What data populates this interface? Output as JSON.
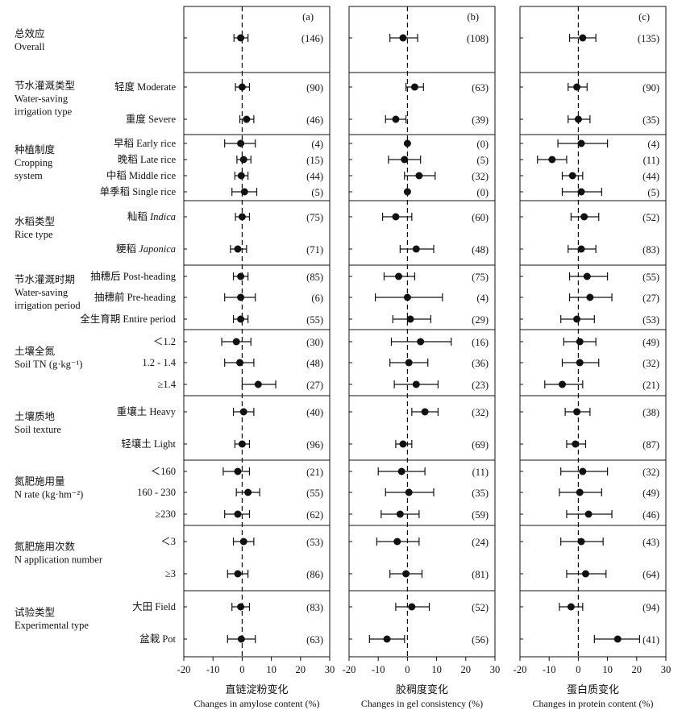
{
  "chart_data": {
    "type": "scatter",
    "panels": [
      {
        "label": "(a)",
        "title": "直链淀粉变化",
        "xlabel": "Changes in amylose content (%)",
        "xlim": [
          -20,
          30
        ],
        "xticks": [
          -20,
          -10,
          0,
          10,
          20,
          30
        ],
        "points": [
          {
            "mean": -0.5,
            "lo": -2.8,
            "hi": 2.0,
            "n": "(146)"
          },
          {
            "mean": 0.0,
            "lo": -2.3,
            "hi": 2.5,
            "n": "(90)"
          },
          {
            "mean": 1.5,
            "lo": -0.8,
            "hi": 4.0,
            "n": "(46)"
          },
          {
            "mean": -0.5,
            "lo": -6.0,
            "hi": 4.5,
            "n": "(4)"
          },
          {
            "mean": 0.5,
            "lo": -1.8,
            "hi": 3.0,
            "n": "(15)"
          },
          {
            "mean": -0.3,
            "lo": -2.5,
            "hi": 2.0,
            "n": "(44)"
          },
          {
            "mean": 0.8,
            "lo": -3.5,
            "hi": 5.0,
            "n": "(5)"
          },
          {
            "mean": 0.0,
            "lo": -2.3,
            "hi": 2.5,
            "n": "(75)"
          },
          {
            "mean": -1.5,
            "lo": -4.0,
            "hi": 1.5,
            "n": "(71)"
          },
          {
            "mean": -0.5,
            "lo": -3.0,
            "hi": 2.0,
            "n": "(85)"
          },
          {
            "mean": -0.5,
            "lo": -6.0,
            "hi": 4.5,
            "n": "(6)"
          },
          {
            "mean": -0.5,
            "lo": -3.0,
            "hi": 2.0,
            "n": "(55)"
          },
          {
            "mean": -2.0,
            "lo": -7.0,
            "hi": 3.0,
            "n": "(30)"
          },
          {
            "mean": -0.8,
            "lo": -6.0,
            "hi": 4.0,
            "n": "(48)"
          },
          {
            "mean": 5.5,
            "lo": 0.0,
            "hi": 11.5,
            "n": "(27)"
          },
          {
            "mean": 0.5,
            "lo": -3.0,
            "hi": 4.0,
            "n": "(40)"
          },
          {
            "mean": 0.0,
            "lo": -2.5,
            "hi": 2.5,
            "n": "(96)"
          },
          {
            "mean": -1.5,
            "lo": -6.5,
            "hi": 2.5,
            "n": "(21)"
          },
          {
            "mean": 2.0,
            "lo": -2.0,
            "hi": 6.0,
            "n": "(55)"
          },
          {
            "mean": -1.5,
            "lo": -6.0,
            "hi": 2.5,
            "n": "(62)"
          },
          {
            "mean": 0.5,
            "lo": -3.0,
            "hi": 4.0,
            "n": "(53)"
          },
          {
            "mean": -1.5,
            "lo": -5.0,
            "hi": 2.0,
            "n": "(86)"
          },
          {
            "mean": -0.5,
            "lo": -3.5,
            "hi": 2.5,
            "n": "(83)"
          },
          {
            "mean": -0.3,
            "lo": -5.0,
            "hi": 4.5,
            "n": "(63)"
          }
        ]
      },
      {
        "label": "(b)",
        "title": "胶稠度变化",
        "xlabel": "Changes in gel consistency (%)",
        "xlim": [
          -20,
          30
        ],
        "xticks": [
          -20,
          -10,
          0,
          10,
          20,
          30
        ],
        "points": [
          {
            "mean": -1.5,
            "lo": -6.0,
            "hi": 3.5,
            "n": "(108)"
          },
          {
            "mean": 2.5,
            "lo": -0.5,
            "hi": 5.5,
            "n": "(63)"
          },
          {
            "mean": -4.0,
            "lo": -7.5,
            "hi": -0.5,
            "n": "(39)"
          },
          {
            "mean": 0.0,
            "lo": 0.0,
            "hi": 0.0,
            "n": "(0)"
          },
          {
            "mean": -1.0,
            "lo": -6.5,
            "hi": 4.5,
            "n": "(5)"
          },
          {
            "mean": 4.0,
            "lo": -1.0,
            "hi": 9.5,
            "n": "(32)"
          },
          {
            "mean": 0.0,
            "lo": 0.0,
            "hi": 0.0,
            "n": "(0)"
          },
          {
            "mean": -4.0,
            "lo": -8.5,
            "hi": 1.5,
            "n": "(60)"
          },
          {
            "mean": 3.0,
            "lo": -2.5,
            "hi": 9.0,
            "n": "(48)"
          },
          {
            "mean": -3.0,
            "lo": -8.0,
            "hi": 2.5,
            "n": "(75)"
          },
          {
            "mean": 0.0,
            "lo": -11.0,
            "hi": 12.0,
            "n": "(4)"
          },
          {
            "mean": 1.0,
            "lo": -5.0,
            "hi": 8.0,
            "n": "(29)"
          },
          {
            "mean": 4.5,
            "lo": -5.5,
            "hi": 15.0,
            "n": "(16)"
          },
          {
            "mean": 0.5,
            "lo": -6.0,
            "hi": 7.0,
            "n": "(36)"
          },
          {
            "mean": 3.0,
            "lo": -4.5,
            "hi": 10.5,
            "n": "(23)"
          },
          {
            "mean": 6.0,
            "lo": 1.5,
            "hi": 10.5,
            "n": "(32)"
          },
          {
            "mean": -1.5,
            "lo": -4.0,
            "hi": 1.5,
            "n": "(69)"
          },
          {
            "mean": -2.0,
            "lo": -10.0,
            "hi": 6.0,
            "n": "(11)"
          },
          {
            "mean": 0.5,
            "lo": -7.5,
            "hi": 9.0,
            "n": "(35)"
          },
          {
            "mean": -2.5,
            "lo": -9.0,
            "hi": 4.0,
            "n": "(59)"
          },
          {
            "mean": -3.5,
            "lo": -10.5,
            "hi": 4.0,
            "n": "(24)"
          },
          {
            "mean": -0.5,
            "lo": -6.0,
            "hi": 5.0,
            "n": "(81)"
          },
          {
            "mean": 1.5,
            "lo": -4.0,
            "hi": 7.5,
            "n": "(52)"
          },
          {
            "mean": -7.0,
            "lo": -13.0,
            "hi": -1.0,
            "n": "(56)"
          }
        ]
      },
      {
        "label": "(c)",
        "title": "蛋白质变化",
        "xlabel": "Changes in protein content (%)",
        "xlim": [
          -20,
          30
        ],
        "xticks": [
          -20,
          -10,
          0,
          10,
          20,
          30
        ],
        "points": [
          {
            "mean": 1.5,
            "lo": -3.0,
            "hi": 6.0,
            "n": "(135)"
          },
          {
            "mean": -0.5,
            "lo": -3.5,
            "hi": 3.0,
            "n": "(90)"
          },
          {
            "mean": 0.0,
            "lo": -3.5,
            "hi": 4.0,
            "n": "(35)"
          },
          {
            "mean": 1.0,
            "lo": -7.0,
            "hi": 10.0,
            "n": "(4)"
          },
          {
            "mean": -9.0,
            "lo": -14.0,
            "hi": -4.0,
            "n": "(11)"
          },
          {
            "mean": -2.0,
            "lo": -5.5,
            "hi": 1.5,
            "n": "(44)"
          },
          {
            "mean": 1.0,
            "lo": -5.5,
            "hi": 8.0,
            "n": "(5)"
          },
          {
            "mean": 2.0,
            "lo": -2.5,
            "hi": 7.0,
            "n": "(52)"
          },
          {
            "mean": 1.0,
            "lo": -3.5,
            "hi": 6.0,
            "n": "(83)"
          },
          {
            "mean": 3.0,
            "lo": -3.0,
            "hi": 10.0,
            "n": "(55)"
          },
          {
            "mean": 4.0,
            "lo": -3.0,
            "hi": 11.5,
            "n": "(27)"
          },
          {
            "mean": -0.5,
            "lo": -6.0,
            "hi": 5.5,
            "n": "(53)"
          },
          {
            "mean": 0.5,
            "lo": -5.0,
            "hi": 6.0,
            "n": "(49)"
          },
          {
            "mean": 0.5,
            "lo": -5.5,
            "hi": 7.0,
            "n": "(32)"
          },
          {
            "mean": -5.5,
            "lo": -11.5,
            "hi": 1.5,
            "n": "(21)"
          },
          {
            "mean": -0.5,
            "lo": -4.5,
            "hi": 4.0,
            "n": "(38)"
          },
          {
            "mean": -1.0,
            "lo": -4.0,
            "hi": 2.5,
            "n": "(87)"
          },
          {
            "mean": 1.5,
            "lo": -6.0,
            "hi": 10.0,
            "n": "(32)"
          },
          {
            "mean": 0.5,
            "lo": -6.5,
            "hi": 8.0,
            "n": "(49)"
          },
          {
            "mean": 3.5,
            "lo": -4.0,
            "hi": 11.5,
            "n": "(46)"
          },
          {
            "mean": 1.0,
            "lo": -6.0,
            "hi": 8.5,
            "n": "(43)"
          },
          {
            "mean": 2.5,
            "lo": -4.0,
            "hi": 9.5,
            "n": "(64)"
          },
          {
            "mean": -2.5,
            "lo": -6.5,
            "hi": 1.5,
            "n": "(94)"
          },
          {
            "mean": 13.5,
            "lo": 5.5,
            "hi": 21.0,
            "n": "(41)"
          }
        ]
      }
    ],
    "groups": [
      {
        "zh": "总效应",
        "en": [
          "Overall"
        ],
        "rows": [
          {
            "label": ""
          }
        ]
      },
      {
        "zh": "节水灌溉类型",
        "en": [
          "Water-saving",
          "irrigation type"
        ],
        "rows": [
          {
            "label": "轻度 Moderate"
          },
          {
            "label": "重度 Severe"
          }
        ]
      },
      {
        "zh": "种植制度",
        "en": [
          "Cropping",
          "system"
        ],
        "rows": [
          {
            "label": "早稻 Early rice"
          },
          {
            "label": "晚稻 Late rice"
          },
          {
            "label": "中稻 Middle rice"
          },
          {
            "label": "单季稻 Single rice"
          }
        ]
      },
      {
        "zh": "水稻类型",
        "en": [
          "Rice type"
        ],
        "rows": [
          {
            "label": "籼稻 ",
            "italic": "Indica"
          },
          {
            "label": "粳稻 ",
            "italic": "Japonica"
          }
        ]
      },
      {
        "zh": "节水灌溉时期",
        "en": [
          "Water-saving",
          "irrigation period"
        ],
        "rows": [
          {
            "label": "抽穗后 Post-heading"
          },
          {
            "label": "抽穗前 Pre-heading"
          },
          {
            "label": "全生育期 Entire period"
          }
        ]
      },
      {
        "zh": "土壤全氮",
        "en": [
          "Soil TN (g·kg⁻¹)"
        ],
        "rows": [
          {
            "label": "＜1.2"
          },
          {
            "label": "1.2 - 1.4"
          },
          {
            "label": "≥1.4"
          }
        ]
      },
      {
        "zh": "土壤质地",
        "en": [
          "Soil texture"
        ],
        "rows": [
          {
            "label": "重壤土 Heavy"
          },
          {
            "label": "轻壤土 Light"
          }
        ]
      },
      {
        "zh": "氮肥施用量",
        "en": [
          "N rate (kg·hm⁻²)"
        ],
        "rows": [
          {
            "label": "＜160"
          },
          {
            "label": "160 - 230"
          },
          {
            "label": "≥230"
          }
        ]
      },
      {
        "zh": "氮肥施用次数",
        "en": [
          "N application number"
        ],
        "rows": [
          {
            "label": "＜3"
          },
          {
            "label": "≥3"
          }
        ]
      },
      {
        "zh": "试验类型",
        "en": [
          "Experimental type"
        ],
        "rows": [
          {
            "label": "大田 Field"
          },
          {
            "label": "盆栽 Pot"
          }
        ]
      }
    ]
  }
}
